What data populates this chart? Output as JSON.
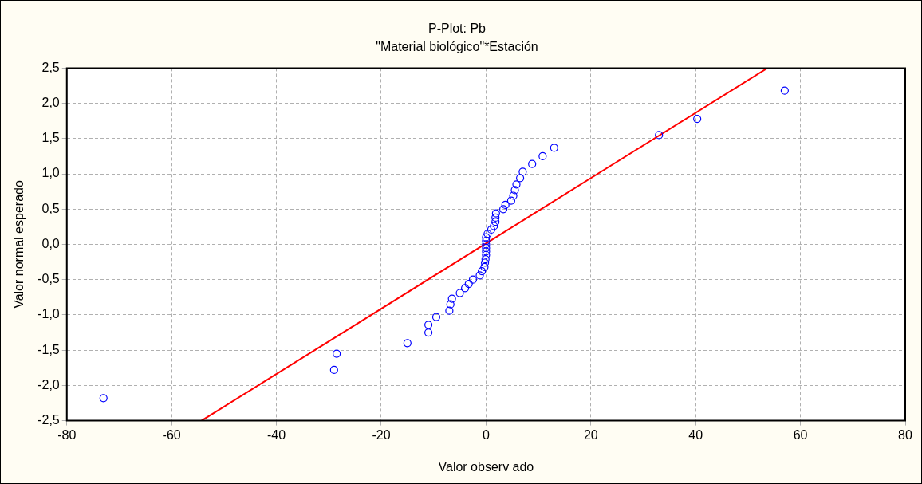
{
  "chart_data": {
    "type": "scatter",
    "title": "P-Plot: Pb",
    "subtitle": "\"Material biológico\"*Estación",
    "xlabel": "Valor observ ado",
    "ylabel": "Valor normal esperado",
    "xlim": [
      -80,
      80
    ],
    "xticks": [
      -80,
      -60,
      -40,
      -20,
      0,
      20,
      40,
      60,
      80
    ],
    "ylim": [
      -2.5,
      2.5
    ],
    "yticks": [
      {
        "value": -2.5,
        "label": "-2,5"
      },
      {
        "value": -2,
        "label": "-2,0"
      },
      {
        "value": -1.5,
        "label": "-1,5"
      },
      {
        "value": -1,
        "label": "-1,0"
      },
      {
        "value": -0.5,
        "label": "-0,5"
      },
      {
        "value": 0,
        "label": "0,0"
      },
      {
        "value": 0.5,
        "label": "0,5"
      },
      {
        "value": 1,
        "label": "1,0"
      },
      {
        "value": 1.5,
        "label": "1,5"
      },
      {
        "value": 2,
        "label": "2,0"
      },
      {
        "value": 2.5,
        "label": "2,5"
      }
    ],
    "grid": true,
    "marker": "circle",
    "series": [
      {
        "type": "scatter",
        "color": "#0000ff",
        "x": [
          -73,
          -29,
          -28.5,
          -15,
          -11,
          -11,
          -9.5,
          -7,
          -6.8,
          -6.5,
          -5,
          -4,
          -3.3,
          -2.5,
          -1.2,
          -0.8,
          -0.3,
          -0.2,
          -0.1,
          0,
          0,
          0,
          0,
          0,
          0,
          0.3,
          1,
          1.5,
          1.8,
          1.8,
          1.9,
          3.3,
          3.7,
          4.8,
          5.2,
          5.5,
          5.8,
          6.5,
          7,
          8.8,
          10.8,
          13,
          33,
          40.3,
          57
        ],
        "values": [
          -2.18,
          -1.78,
          -1.55,
          -1.4,
          -1.25,
          -1.14,
          -1.03,
          -0.94,
          -0.85,
          -0.77,
          -0.69,
          -0.62,
          -0.56,
          -0.5,
          -0.44,
          -0.38,
          -0.32,
          -0.26,
          -0.21,
          -0.15,
          -0.1,
          -0.05,
          0,
          0.05,
          0.1,
          0.15,
          0.21,
          0.26,
          0.32,
          0.38,
          0.44,
          0.5,
          0.56,
          0.62,
          0.69,
          0.77,
          0.85,
          0.94,
          1.03,
          1.14,
          1.25,
          1.37,
          1.55,
          1.78,
          2.18
        ]
      },
      {
        "type": "line",
        "color": "#ff0000",
        "marker": "none",
        "x": [
          -54.3,
          53.7
        ],
        "values": [
          -2.5,
          2.5
        ]
      }
    ]
  }
}
